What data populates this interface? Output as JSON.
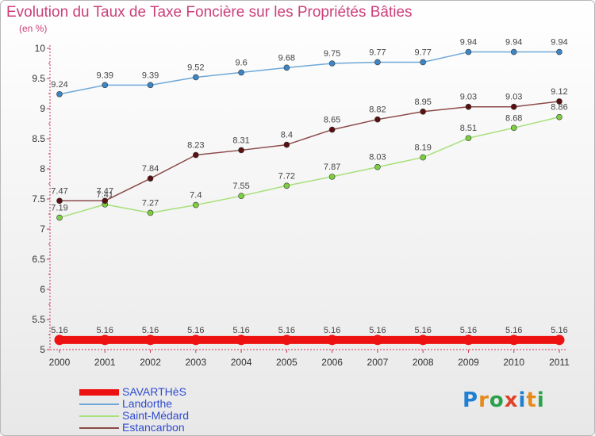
{
  "header": {
    "title": "Evolution du Taux de Taxe Foncière sur les Propriétés Bâties",
    "unit": "(en %)"
  },
  "logo": {
    "text": "Proxiti",
    "colors": [
      "#1f7fd0",
      "#e58a1b",
      "#2aa14a",
      "#e0412b",
      "#1f7fd0",
      "#e58a1b",
      "#2aa14a"
    ]
  },
  "chart_data": {
    "type": "line",
    "title": "Evolution du Taux de Taxe Foncière sur les Propriétés Bâties",
    "ylabel": "(en %)",
    "xlabel": "",
    "x": [
      "2000",
      "2001",
      "2002",
      "2003",
      "2004",
      "2005",
      "2006",
      "2007",
      "2008",
      "2009",
      "2010",
      "2011"
    ],
    "ylim": [
      5,
      10
    ],
    "yticks": [
      "5",
      "5.5",
      "6",
      "6.5",
      "7",
      "7.5",
      "8",
      "8.5",
      "9",
      "9.5",
      "10"
    ],
    "ytick_values": [
      5,
      5.5,
      6,
      6.5,
      7,
      7.5,
      8,
      8.5,
      9,
      9.5,
      10
    ],
    "grid": false,
    "legend_position": "bottom-left",
    "series": [
      {
        "name": "SAVARTHèS",
        "color": "#ee1111",
        "marker_color": "#ee1111",
        "thick": true,
        "values": [
          5.16,
          5.16,
          5.16,
          5.16,
          5.16,
          5.16,
          5.16,
          5.16,
          5.16,
          5.16,
          5.16,
          5.16
        ],
        "labels": [
          "5.16",
          "5.16",
          "5.16",
          "5.16",
          "5.16",
          "5.16",
          "5.16",
          "5.16",
          "5.16",
          "5.16",
          "5.16",
          "5.16"
        ]
      },
      {
        "name": "Landorthe",
        "color": "#6fa8d8",
        "marker_color": "#3d86c6",
        "thick": false,
        "values": [
          9.24,
          9.39,
          9.39,
          9.52,
          9.6,
          9.68,
          9.75,
          9.77,
          9.77,
          9.94,
          9.94,
          9.94
        ],
        "labels": [
          "9.24",
          "9.39",
          "9.39",
          "9.52",
          "9.6",
          "9.68",
          "9.75",
          "9.77",
          "9.77",
          "9.94",
          "9.94",
          "9.94"
        ]
      },
      {
        "name": "Saint-Médard",
        "color": "#a8e07a",
        "marker_color": "#7ccf3f",
        "thick": false,
        "values": [
          7.19,
          7.41,
          7.27,
          7.4,
          7.55,
          7.72,
          7.87,
          8.03,
          8.19,
          8.51,
          8.68,
          8.86
        ],
        "labels": [
          "7.19",
          "7.41",
          "7.27",
          "7.4",
          "7.55",
          "7.72",
          "7.87",
          "8.03",
          "8.19",
          "8.51",
          "8.68",
          "8.86"
        ]
      },
      {
        "name": "Estancarbon",
        "color": "#8c4a4a",
        "marker_color": "#5a1010",
        "thick": false,
        "values": [
          7.47,
          7.47,
          7.84,
          8.23,
          8.31,
          8.4,
          8.65,
          8.82,
          8.95,
          9.03,
          9.03,
          9.12
        ],
        "labels": [
          "7.47",
          "7.47",
          "7.84",
          "8.23",
          "8.31",
          "8.4",
          "8.65",
          "8.82",
          "8.95",
          "9.03",
          "9.03",
          "9.12"
        ]
      }
    ]
  }
}
